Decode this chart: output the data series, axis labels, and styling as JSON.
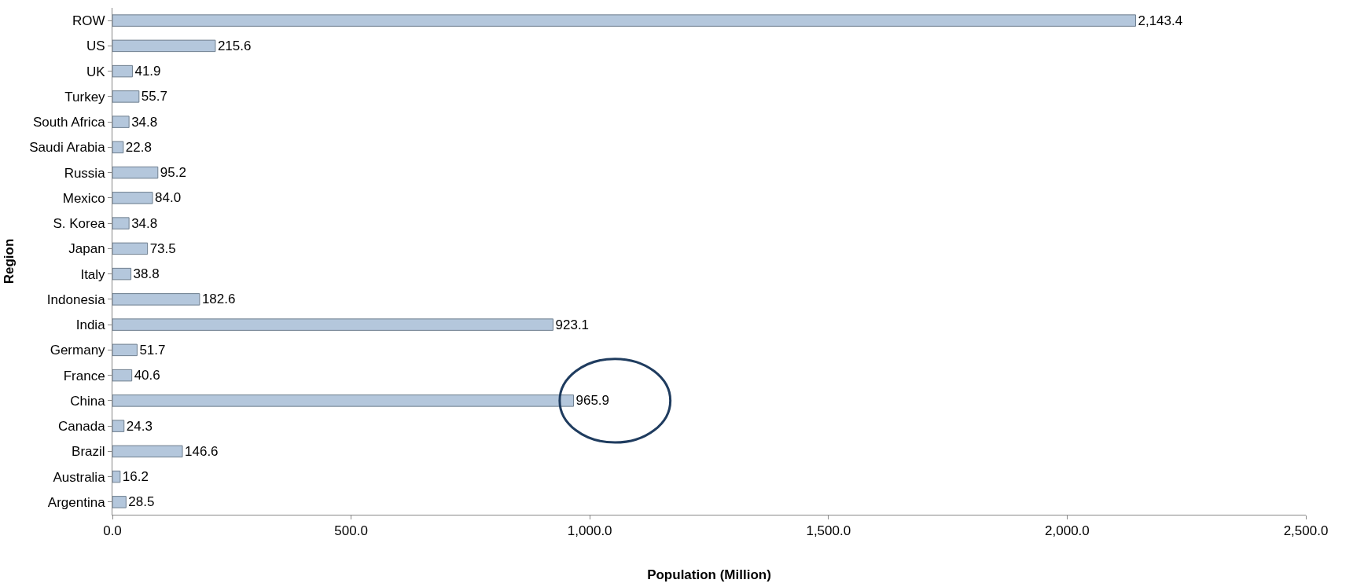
{
  "chart_data": {
    "type": "bar",
    "orientation": "horizontal",
    "xlabel": "Population (Million)",
    "ylabel": "Region",
    "categories": [
      "ROW",
      "US",
      "UK",
      "Turkey",
      "South Africa",
      "Saudi Arabia",
      "Russia",
      "Mexico",
      "S. Korea",
      "Japan",
      "Italy",
      "Indonesia",
      "India",
      "Germany",
      "France",
      "China",
      "Canada",
      "Brazil",
      "Australia",
      "Argentina"
    ],
    "values": [
      2143.4,
      215.6,
      41.9,
      55.7,
      34.8,
      22.8,
      95.2,
      84.0,
      34.8,
      73.5,
      38.8,
      182.6,
      923.1,
      51.7,
      40.6,
      965.9,
      24.3,
      146.6,
      16.2,
      28.5
    ],
    "value_labels": [
      "2,143.4",
      "215.6",
      "41.9",
      "55.7",
      "34.8",
      "22.8",
      "95.2",
      "84.0",
      "34.8",
      "73.5",
      "38.8",
      "182.6",
      "923.1",
      "51.7",
      "40.6",
      "965.9",
      "24.3",
      "146.6",
      "16.2",
      "28.5"
    ],
    "color": "#b4c7dc",
    "xlim": [
      0,
      2500
    ],
    "xticks": [
      {
        "value": 0,
        "label": "0.0"
      },
      {
        "value": 500,
        "label": "500.0"
      },
      {
        "value": 1000,
        "label": "1,000.0"
      },
      {
        "value": 1500,
        "label": "1,500.0"
      },
      {
        "value": 2000,
        "label": "2,000.0"
      },
      {
        "value": 2500,
        "label": "2,500.0"
      }
    ],
    "legend": false
  }
}
